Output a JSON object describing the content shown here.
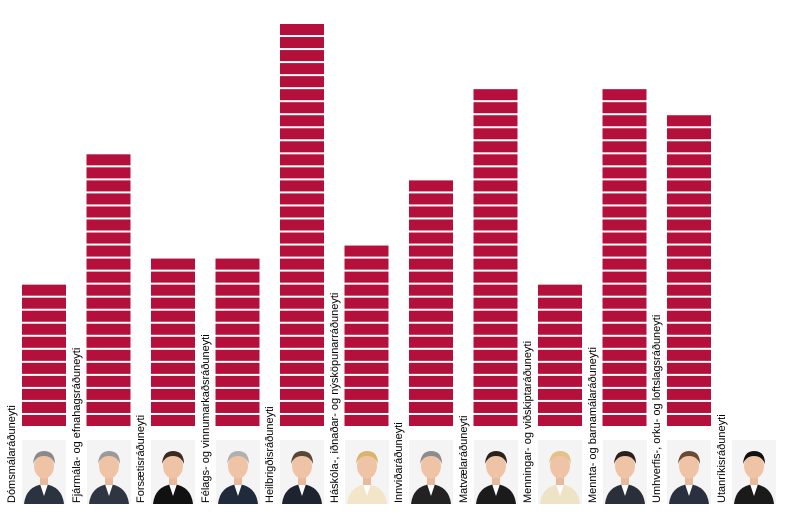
{
  "chart_data": {
    "type": "bar",
    "style": "stacked unit blocks",
    "bar_color": "#B5103C",
    "categories": [
      "Dómsmálaráðuneyti",
      "Fjármála- og efnahagsráðuneyti",
      "Forsætisráðuneyti",
      "Félags- og vinnumarkaðsráðuneyti",
      "Heilbrigðisráðuneyti",
      "Háskóla-, iðnaðar- og nýsköpunarráðuneyti",
      "Innviðaráðuneyti",
      "Matvælaráðuneyti",
      "Menningar- og viðskiptaráðuneyti",
      "Mennta- og barnamálaráðuneyti",
      "Umhverfis-, orku- og loftslagsráðuneyti",
      "Utanríkisráðuneyti"
    ],
    "values": [
      11,
      21,
      13,
      13,
      31,
      14,
      19,
      26,
      11,
      26,
      24,
      0
    ],
    "ylim": [
      0,
      31
    ],
    "grid": false,
    "legend": "none",
    "portrait_icons": [
      "person-portrait-icon",
      "person-portrait-icon",
      "person-portrait-icon",
      "person-portrait-icon",
      "person-portrait-icon",
      "person-portrait-icon",
      "person-portrait-icon",
      "person-portrait-icon",
      "person-portrait-icon",
      "person-portrait-icon",
      "person-portrait-icon",
      "person-portrait-icon"
    ]
  }
}
